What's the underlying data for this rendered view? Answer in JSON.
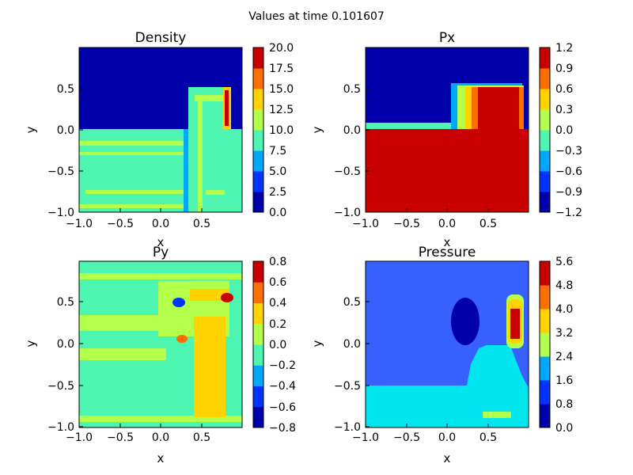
{
  "figure": {
    "title": "Values at time 0.101607"
  },
  "colors": {
    "jet": [
      "#0000aa",
      "#0033ff",
      "#00a7ff",
      "#4ef5b0",
      "#b3ff4b",
      "#ffd200",
      "#ff6e00",
      "#c80000"
    ]
  },
  "chart_data": [
    {
      "type": "heatmap",
      "title": "Density",
      "xlabel": "x",
      "ylabel": "y",
      "xlim": [
        -1.0,
        1.0
      ],
      "ylim": [
        -1.0,
        1.0
      ],
      "xticks": [
        "−1.0",
        "−0.5",
        "0.0",
        "0.5"
      ],
      "yticks": [
        "−1.0",
        "−0.5",
        "0.0",
        "0.5"
      ],
      "colorbar_ticks": [
        "0.0",
        "2.5",
        "5.0",
        "7.5",
        "10.0",
        "12.5",
        "15.0",
        "17.5",
        "20.0"
      ],
      "colorbar_range": [
        0,
        20
      ]
    },
    {
      "type": "heatmap",
      "title": "Px",
      "xlabel": "x",
      "ylabel": "y",
      "xlim": [
        -1.0,
        1.0
      ],
      "ylim": [
        -1.0,
        1.0
      ],
      "xticks": [
        "−1.0",
        "−0.5",
        "0.0",
        "0.5"
      ],
      "yticks": [
        "−1.0",
        "−0.5",
        "0.0",
        "0.5"
      ],
      "colorbar_ticks": [
        "−1.2",
        "−0.9",
        "−0.6",
        "−0.3",
        "0.0",
        "0.3",
        "0.6",
        "0.9",
        "1.2"
      ],
      "colorbar_range": [
        -1.2,
        1.2
      ]
    },
    {
      "type": "heatmap",
      "title": "Py",
      "xlabel": "x",
      "ylabel": "y",
      "xlim": [
        -1.0,
        1.0
      ],
      "ylim": [
        -1.0,
        1.0
      ],
      "xticks": [
        "−1.0",
        "−0.5",
        "0.0",
        "0.5"
      ],
      "yticks": [
        "−1.0",
        "−0.5",
        "0.0",
        "0.5"
      ],
      "colorbar_ticks": [
        "−0.8",
        "−0.6",
        "−0.4",
        "−0.2",
        "0.0",
        "0.2",
        "0.4",
        "0.6",
        "0.8"
      ],
      "colorbar_range": [
        -0.8,
        0.8
      ]
    },
    {
      "type": "heatmap",
      "title": "Pressure",
      "xlabel": "x",
      "ylabel": "y",
      "xlim": [
        -1.0,
        1.0
      ],
      "ylim": [
        -1.0,
        1.0
      ],
      "xticks": [
        "−1.0",
        "−0.5",
        "0.0",
        "0.5"
      ],
      "yticks": [
        "−1.0",
        "−0.5",
        "0.0",
        "0.5"
      ],
      "colorbar_ticks": [
        "0.0",
        "0.8",
        "1.6",
        "2.4",
        "3.2",
        "4.0",
        "4.8",
        "5.6"
      ],
      "colorbar_range": [
        0,
        5.6
      ]
    }
  ]
}
